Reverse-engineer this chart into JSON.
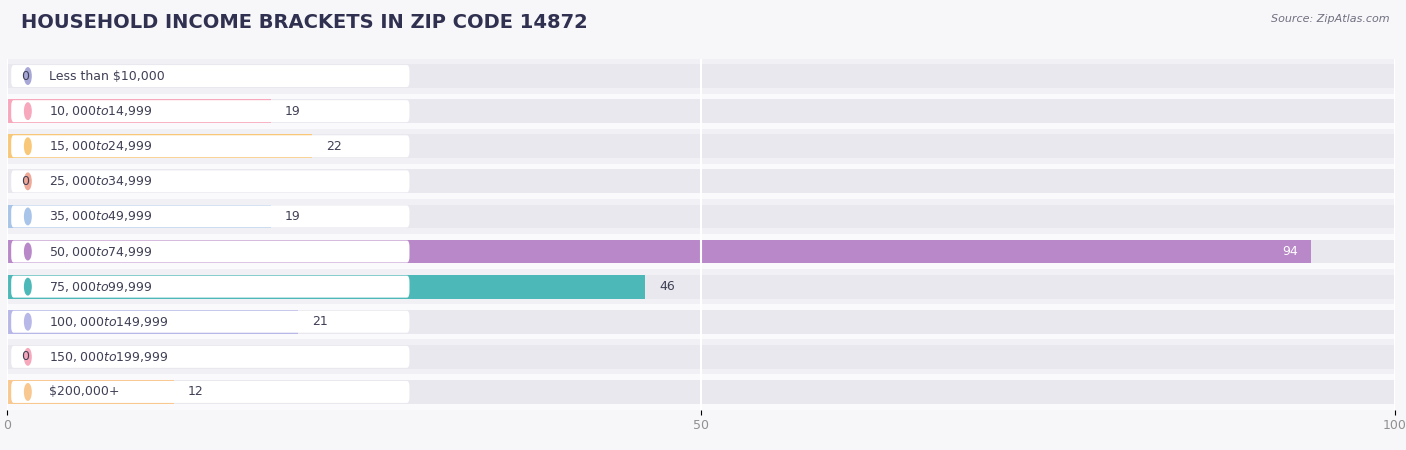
{
  "title": "HOUSEHOLD INCOME BRACKETS IN ZIP CODE 14872",
  "source": "Source: ZipAtlas.com",
  "categories": [
    "Less than $10,000",
    "$10,000 to $14,999",
    "$15,000 to $24,999",
    "$25,000 to $34,999",
    "$35,000 to $49,999",
    "$50,000 to $74,999",
    "$75,000 to $99,999",
    "$100,000 to $149,999",
    "$150,000 to $199,999",
    "$200,000+"
  ],
  "values": [
    0,
    19,
    22,
    0,
    19,
    94,
    46,
    21,
    0,
    12
  ],
  "bar_colors": [
    "#a8a8d8",
    "#f7a8bc",
    "#f8c878",
    "#f0a898",
    "#a8c4e8",
    "#b888c8",
    "#4db8b8",
    "#b8b8e8",
    "#f7a8bc",
    "#f8c890"
  ],
  "bg_color": "#f7f7fa",
  "bar_bg_color": "#e8e8ee",
  "row_bg_even": "#f0f0f5",
  "row_bg_odd": "#fafafd",
  "xlim": [
    0,
    100
  ],
  "xticks": [
    0,
    50,
    100
  ],
  "title_fontsize": 14,
  "label_fontsize": 9,
  "value_fontsize": 9,
  "bar_height": 0.68,
  "label_text_color": "#404055",
  "value_text_color": "#404055",
  "grid_color": "#ffffff",
  "tick_color": "#909090"
}
